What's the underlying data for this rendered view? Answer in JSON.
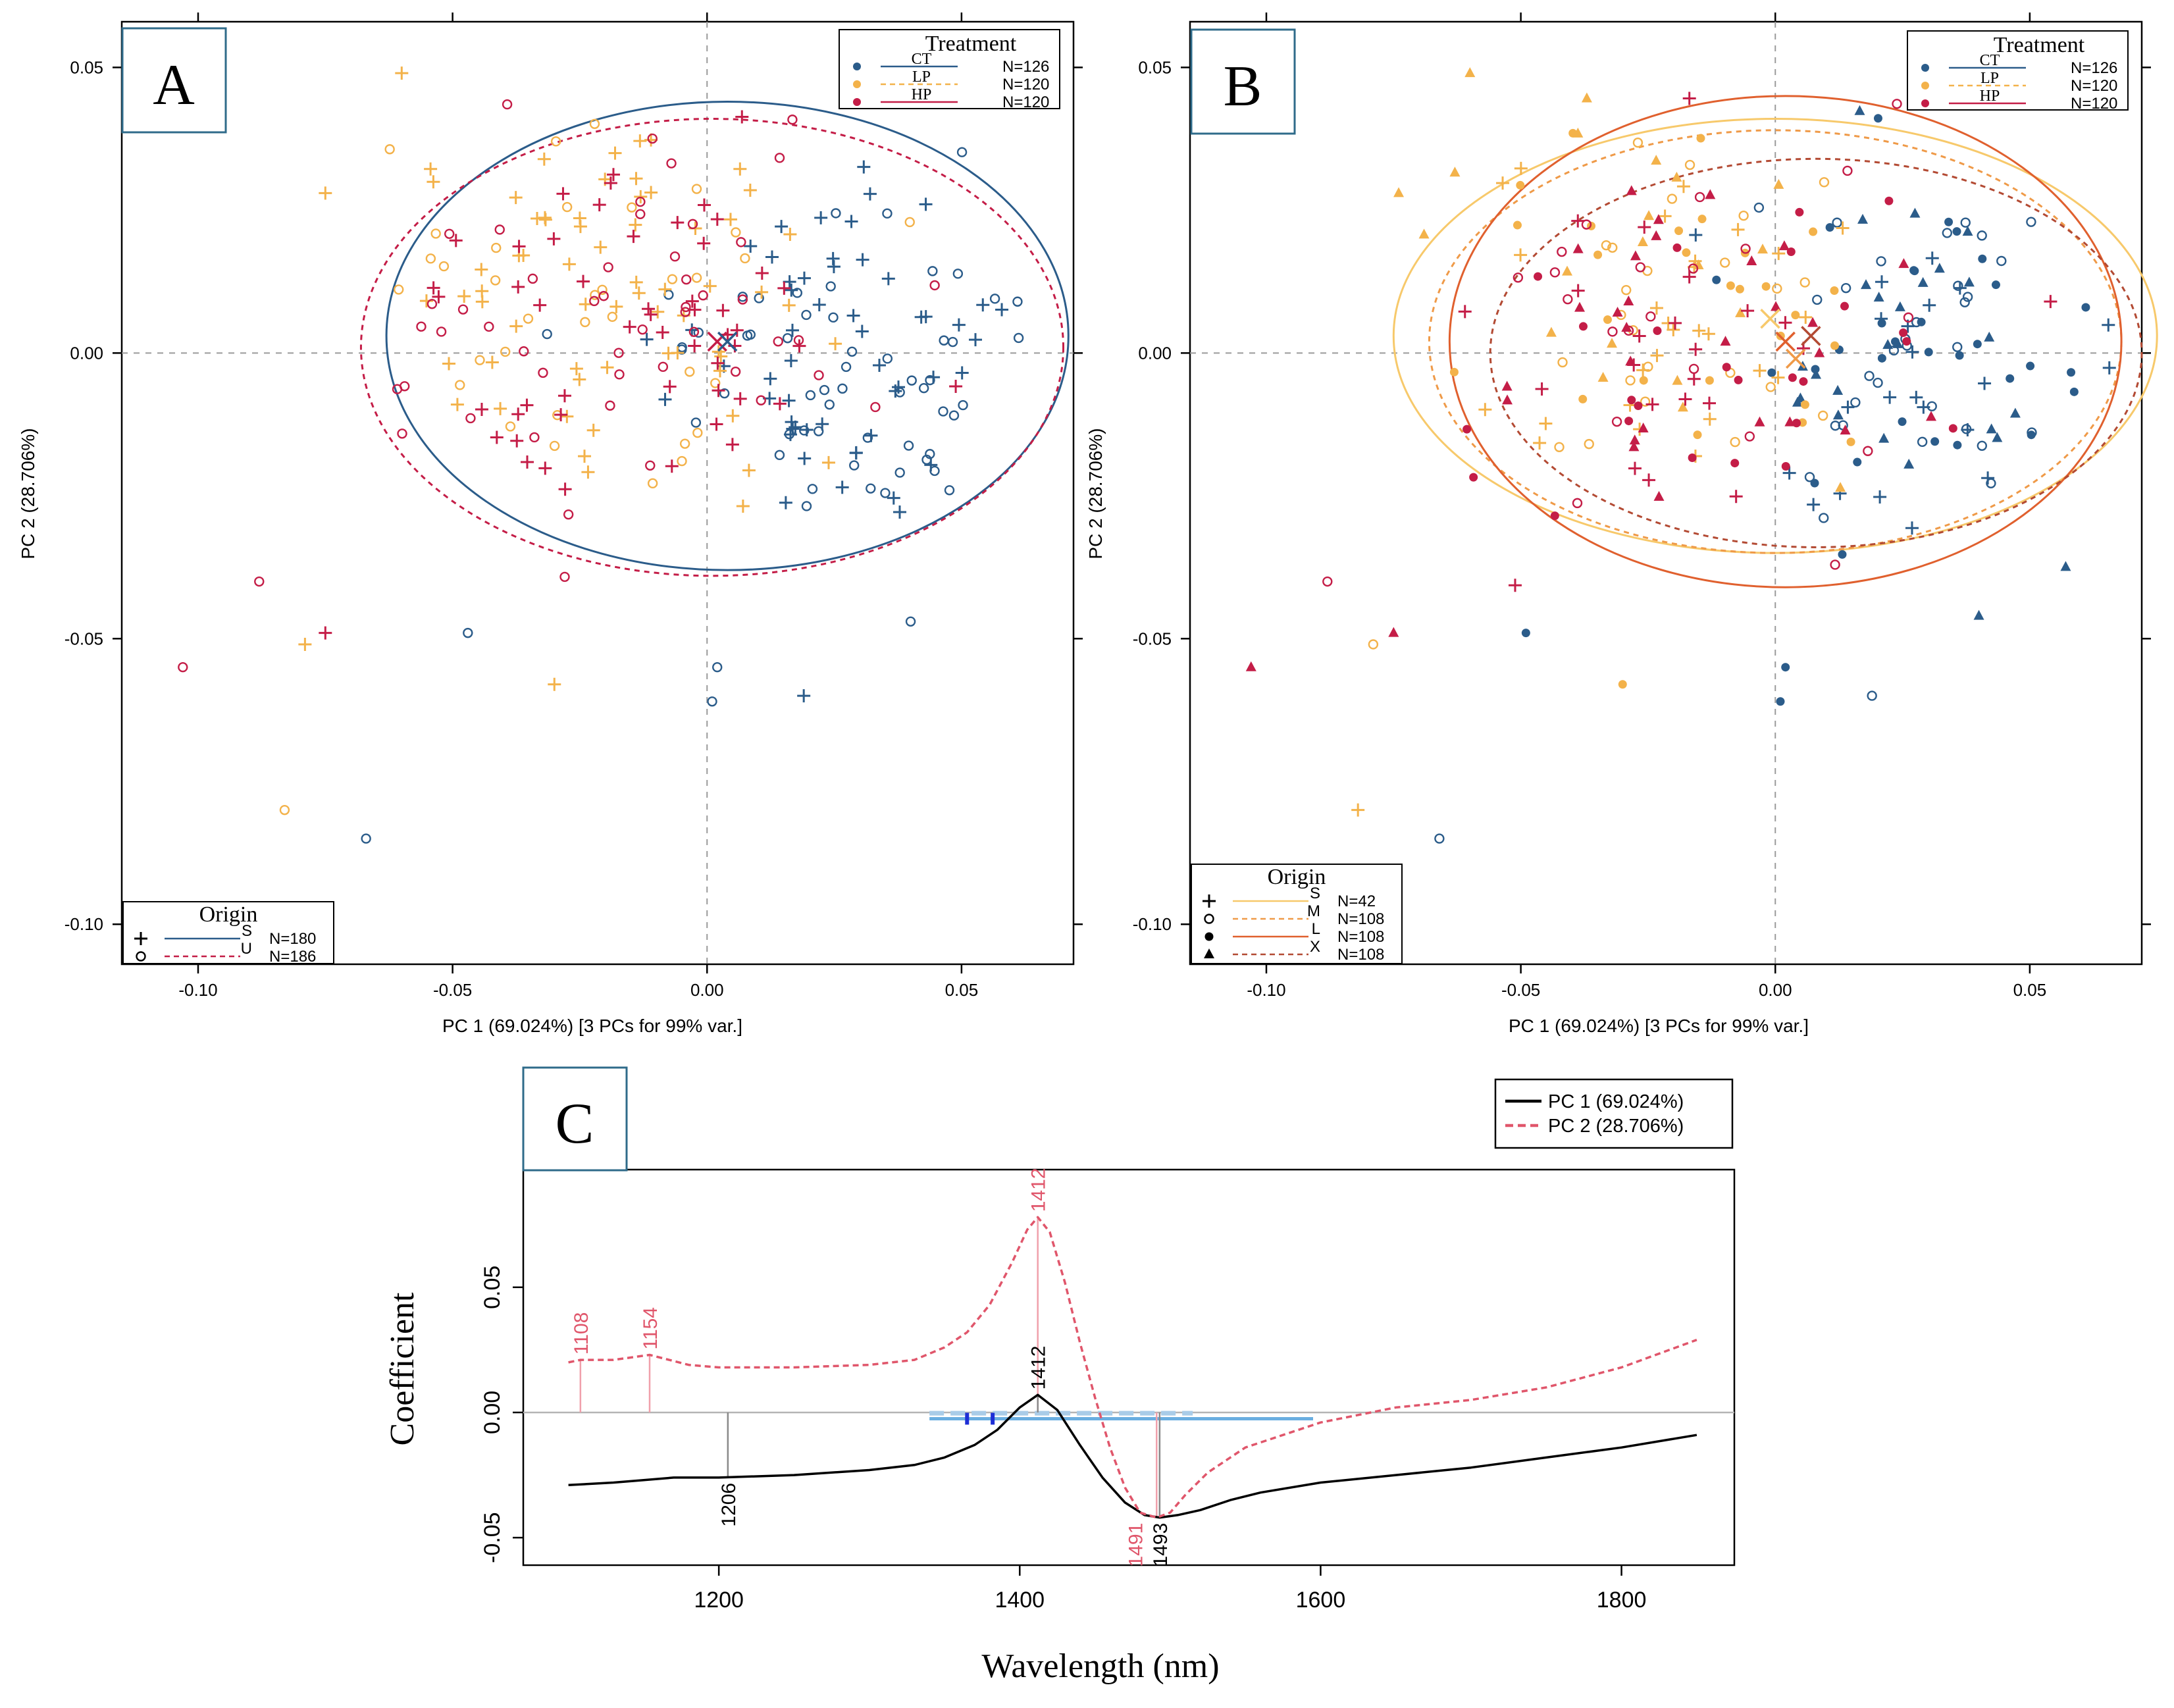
{
  "colors": {
    "CT": "#2b5c8a",
    "LP": "#f3b24a",
    "HP": "#c41d47",
    "S_line": "#f7c96b",
    "M_line": "#ef9a48",
    "L_line": "#e0602e",
    "X_line": "#b34a33",
    "PC1": "#000000",
    "PC2": "#e0566b",
    "band_light": "#a9cce8",
    "band_mid": "#6aaee0",
    "band_dark": "#1d2ed6",
    "ref": "#9a9a9a",
    "badge_border": "#2f6b8a"
  },
  "chart_data": [
    {
      "panel": "A",
      "type": "scatter",
      "xlabel": "PC 1 (69.024%)   [3 PCs for 99% var.]",
      "ylabel": "PC 2 (28.706%)",
      "xlim": [
        -0.115,
        0.072
      ],
      "ylim": [
        -0.107,
        0.058
      ],
      "xticks": [
        "-0.10",
        "-0.05",
        "0.00",
        "0.05"
      ],
      "xtick_values": [
        -0.1,
        -0.05,
        0,
        0.05
      ],
      "yticks": [
        "0.05",
        "0.00",
        "-0.05",
        "-0.10"
      ],
      "ytick_values": [
        0.05,
        0,
        -0.05,
        -0.1
      ],
      "legend_treatment": {
        "title": "Treatment",
        "items": [
          {
            "label": "CT",
            "n": "N=126",
            "group": "CT"
          },
          {
            "label": "LP",
            "n": "N=120",
            "group": "LP"
          },
          {
            "label": "HP",
            "n": "N=120",
            "group": "HP"
          }
        ]
      },
      "legend_origin": {
        "title": "Origin",
        "items": [
          {
            "label": "S",
            "n": "N=180",
            "marker": "plus",
            "line": "solid",
            "line_color": "CT"
          },
          {
            "label": "U",
            "n": "N=186",
            "marker": "circle",
            "line": "dashed",
            "line_color": "HP"
          }
        ]
      },
      "ellipses": [
        {
          "name": "S",
          "center": [
            0.004,
            0.003
          ],
          "rx": 0.067,
          "ry": 0.041,
          "color": "CT",
          "dash": false
        },
        {
          "name": "U",
          "center": [
            0.001,
            0.001
          ],
          "rx": 0.069,
          "ry": 0.04,
          "color": "HP",
          "dash": true
        }
      ],
      "centroids": [
        {
          "x": 0.002,
          "y": 0.002,
          "color": "HP"
        },
        {
          "x": 0.004,
          "y": 0.002,
          "color": "CT"
        }
      ],
      "labeled_points": [
        {
          "x": -0.103,
          "y": -0.055,
          "group": "HP",
          "marker": "circle"
        },
        {
          "x": -0.088,
          "y": -0.04,
          "group": "HP",
          "marker": "circle"
        },
        {
          "x": -0.083,
          "y": -0.08,
          "group": "LP",
          "marker": "circle"
        },
        {
          "x": -0.079,
          "y": -0.051,
          "group": "LP",
          "marker": "plus"
        },
        {
          "x": -0.075,
          "y": -0.049,
          "group": "HP",
          "marker": "plus"
        },
        {
          "x": -0.067,
          "y": -0.085,
          "group": "CT",
          "marker": "circle"
        },
        {
          "x": -0.03,
          "y": -0.058,
          "group": "LP",
          "marker": "plus"
        },
        {
          "x": -0.047,
          "y": -0.049,
          "group": "CT",
          "marker": "circle"
        },
        {
          "x": 0.001,
          "y": -0.061,
          "group": "CT",
          "marker": "circle"
        },
        {
          "x": 0.002,
          "y": -0.055,
          "group": "CT",
          "marker": "circle"
        },
        {
          "x": 0.019,
          "y": -0.06,
          "group": "CT",
          "marker": "plus"
        },
        {
          "x": 0.04,
          "y": -0.047,
          "group": "CT",
          "marker": "circle"
        },
        {
          "x": -0.06,
          "y": 0.049,
          "group": "LP",
          "marker": "plus"
        },
        {
          "x": -0.075,
          "y": 0.028,
          "group": "LP",
          "marker": "plus"
        },
        {
          "x": 0.061,
          "y": 0.009,
          "group": "CT",
          "marker": "circle"
        }
      ]
    },
    {
      "panel": "B",
      "type": "scatter",
      "xlabel": "PC 1 (69.024%)   [3 PCs for 99% var.]",
      "ylabel": "PC 2 (28.706%)",
      "xlim": [
        -0.115,
        0.072
      ],
      "ylim": [
        -0.107,
        0.058
      ],
      "xticks": [
        "-0.10",
        "-0.05",
        "0.00",
        "0.05"
      ],
      "xtick_values": [
        -0.1,
        -0.05,
        0,
        0.05
      ],
      "yticks": [
        "0.05",
        "0.00",
        "-0.05",
        "-0.10"
      ],
      "ytick_values": [
        0.05,
        0,
        -0.05,
        -0.1
      ],
      "legend_treatment": {
        "title": "Treatment",
        "items": [
          {
            "label": "CT",
            "n": "N=126",
            "group": "CT"
          },
          {
            "label": "LP",
            "n": "N=120",
            "group": "LP"
          },
          {
            "label": "HP",
            "n": "N=120",
            "group": "HP"
          }
        ]
      },
      "legend_origin": {
        "title": "Origin",
        "items": [
          {
            "label": "S",
            "n": "N=42",
            "marker": "plus",
            "line": "solid",
            "line_color": "S_line"
          },
          {
            "label": "M",
            "n": "N=108",
            "marker": "circle",
            "line": "dashed",
            "line_color": "M_line"
          },
          {
            "label": "L",
            "n": "N=108",
            "marker": "dot",
            "line": "solid",
            "line_color": "L_line"
          },
          {
            "label": "X",
            "n": "N=108",
            "marker": "triangle",
            "line": "dashed",
            "line_color": "X_line"
          }
        ]
      },
      "ellipses": [
        {
          "name": "S",
          "center": [
            0.0,
            0.003
          ],
          "rx": 0.075,
          "ry": 0.038,
          "color": "S_line",
          "dash": false
        },
        {
          "name": "M",
          "center": [
            0.0,
            0.002
          ],
          "rx": 0.068,
          "ry": 0.037,
          "color": "M_line",
          "dash": true
        },
        {
          "name": "L",
          "center": [
            0.002,
            0.002
          ],
          "rx": 0.066,
          "ry": 0.043,
          "color": "L_line",
          "dash": false
        },
        {
          "name": "X",
          "center": [
            0.008,
            0.0
          ],
          "rx": 0.064,
          "ry": 0.034,
          "color": "X_line",
          "dash": true
        }
      ],
      "centroids": [
        {
          "x": 0.002,
          "y": 0.002,
          "color": "L_line"
        },
        {
          "x": 0.004,
          "y": -0.001,
          "color": "M_line"
        },
        {
          "x": 0.007,
          "y": 0.003,
          "color": "X_line"
        },
        {
          "x": -0.001,
          "y": 0.006,
          "color": "S_line"
        }
      ],
      "labeled_points": [
        {
          "x": -0.103,
          "y": -0.055,
          "group": "HP",
          "marker": "triangle"
        },
        {
          "x": -0.088,
          "y": -0.04,
          "group": "HP",
          "marker": "circle"
        },
        {
          "x": -0.082,
          "y": -0.08,
          "group": "LP",
          "marker": "plus"
        },
        {
          "x": -0.079,
          "y": -0.051,
          "group": "LP",
          "marker": "circle"
        },
        {
          "x": -0.075,
          "y": -0.049,
          "group": "HP",
          "marker": "triangle"
        },
        {
          "x": -0.066,
          "y": -0.085,
          "group": "CT",
          "marker": "circle"
        },
        {
          "x": -0.03,
          "y": -0.058,
          "group": "LP",
          "marker": "dot"
        },
        {
          "x": -0.049,
          "y": -0.049,
          "group": "CT",
          "marker": "dot"
        },
        {
          "x": 0.001,
          "y": -0.061,
          "group": "CT",
          "marker": "dot"
        },
        {
          "x": 0.002,
          "y": -0.055,
          "group": "CT",
          "marker": "dot"
        },
        {
          "x": 0.019,
          "y": -0.06,
          "group": "CT",
          "marker": "circle"
        },
        {
          "x": 0.04,
          "y": -0.046,
          "group": "CT",
          "marker": "triangle"
        },
        {
          "x": -0.06,
          "y": 0.049,
          "group": "LP",
          "marker": "triangle"
        },
        {
          "x": -0.074,
          "y": 0.028,
          "group": "LP",
          "marker": "triangle"
        },
        {
          "x": 0.061,
          "y": 0.008,
          "group": "CT",
          "marker": "dot"
        }
      ]
    },
    {
      "panel": "C",
      "type": "line",
      "xlabel": "Wavelength (nm)",
      "ylabel": "Coefficient",
      "xlim": [
        1070,
        1875
      ],
      "ylim": [
        -0.061,
        0.097
      ],
      "xticks": [
        "1200",
        "1400",
        "1600",
        "1800"
      ],
      "xtick_values": [
        1200,
        1400,
        1600,
        1800
      ],
      "yticks": [
        "0.05",
        "0.00",
        "-0.05"
      ],
      "ytick_values": [
        0.05,
        0,
        -0.05
      ],
      "series": [
        {
          "name": "PC 1 (69.024%)",
          "color": "PC1",
          "dash": false,
          "x": [
            1100,
            1130,
            1150,
            1170,
            1200,
            1250,
            1300,
            1330,
            1350,
            1370,
            1385,
            1400,
            1412,
            1425,
            1440,
            1455,
            1470,
            1483,
            1493,
            1505,
            1520,
            1540,
            1560,
            1600,
            1650,
            1700,
            1750,
            1800,
            1850
          ],
          "y": [
            -0.029,
            -0.028,
            -0.027,
            -0.026,
            -0.026,
            -0.025,
            -0.023,
            -0.021,
            -0.018,
            -0.013,
            -0.007,
            0.002,
            0.007,
            0.001,
            -0.013,
            -0.026,
            -0.036,
            -0.041,
            -0.042,
            -0.041,
            -0.039,
            -0.035,
            -0.032,
            -0.028,
            -0.025,
            -0.022,
            -0.018,
            -0.014,
            -0.009
          ]
        },
        {
          "name": "PC 2 (28.706%)",
          "color": "PC2",
          "dash": true,
          "x": [
            1100,
            1108,
            1130,
            1154,
            1180,
            1200,
            1250,
            1300,
            1330,
            1350,
            1365,
            1380,
            1395,
            1405,
            1412,
            1420,
            1430,
            1440,
            1450,
            1460,
            1470,
            1480,
            1491,
            1500,
            1510,
            1525,
            1550,
            1600,
            1650,
            1700,
            1750,
            1800,
            1850
          ],
          "y": [
            0.02,
            0.021,
            0.021,
            0.023,
            0.019,
            0.018,
            0.018,
            0.019,
            0.021,
            0.026,
            0.032,
            0.043,
            0.06,
            0.073,
            0.078,
            0.072,
            0.052,
            0.028,
            0.006,
            -0.014,
            -0.03,
            -0.04,
            -0.042,
            -0.04,
            -0.033,
            -0.024,
            -0.014,
            -0.004,
            0.002,
            0.005,
            0.01,
            0.018,
            0.029
          ]
        }
      ],
      "peaks": [
        {
          "label": "1108",
          "x": 1108,
          "y": 0.021,
          "series": "PC2",
          "side": "top"
        },
        {
          "label": "1154",
          "x": 1154,
          "y": 0.023,
          "series": "PC2",
          "side": "top"
        },
        {
          "label": "1412",
          "x": 1412,
          "y": 0.078,
          "series": "PC2",
          "side": "top"
        },
        {
          "label": "1491",
          "x": 1491,
          "y": -0.042,
          "series": "PC2",
          "side": "bottom"
        },
        {
          "label": "1206",
          "x": 1206,
          "y": -0.026,
          "series": "PC1",
          "side": "bottom"
        },
        {
          "label": "1412",
          "x": 1412,
          "y": 0.007,
          "series": "PC1",
          "side": "top"
        },
        {
          "label": "1493",
          "x": 1493,
          "y": -0.042,
          "series": "PC1",
          "side": "bottom"
        }
      ],
      "band_ranges": [
        {
          "from": 1340,
          "to": 1595,
          "y": -0.0025,
          "tone": "band_mid"
        },
        {
          "from": 1340,
          "to": 1515,
          "y": -0.0003,
          "tone": "band_light"
        }
      ],
      "band_dots": [
        1365,
        1382
      ]
    }
  ],
  "labels": {
    "panel_a": "A",
    "panel_b": "B",
    "panel_c": "C"
  }
}
